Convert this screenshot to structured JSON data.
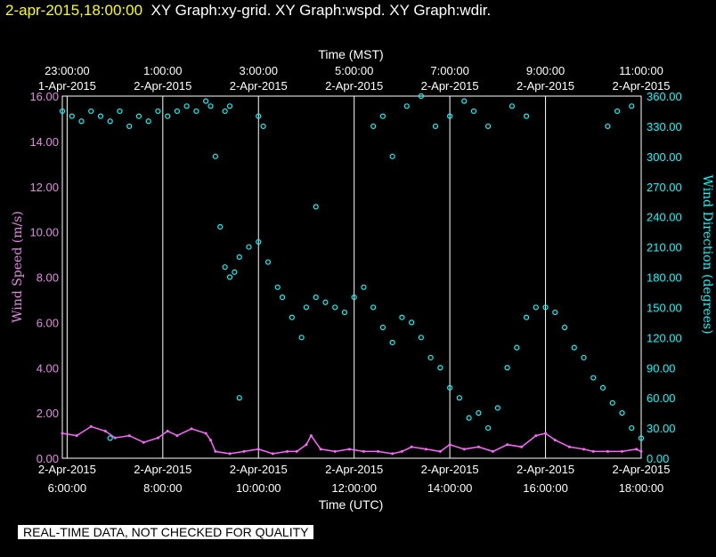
{
  "header": {
    "timestamp": "2-apr-2015,18:00:00",
    "graphs": "XY Graph:xy-grid.  XY Graph:wspd.  XY Graph:wdir."
  },
  "footer": {
    "quality_notice": "REAL-TIME DATA, NOT CHECKED FOR QUALITY"
  },
  "colors": {
    "background": "#000000",
    "axis": "#ffffff",
    "grid": "#ffffff",
    "wind_speed": "#ff66ff",
    "wind_speed_axis": "#e58ae5",
    "wind_direction": "#00ffff",
    "header_timestamp": "#ffff00"
  },
  "chart_data": {
    "type": "scatter",
    "top_axis": {
      "title": "Time (MST)",
      "ticks": [
        {
          "time": "23:00:00",
          "date": "1-Apr-2015"
        },
        {
          "time": "1:00:00",
          "date": "2-Apr-2015"
        },
        {
          "time": "3:00:00",
          "date": "2-Apr-2015"
        },
        {
          "time": "5:00:00",
          "date": "2-Apr-2015"
        },
        {
          "time": "7:00:00",
          "date": "2-Apr-2015"
        },
        {
          "time": "9:00:00",
          "date": "2-Apr-2015"
        },
        {
          "time": "11:00:00",
          "date": "2-Apr-2015"
        }
      ]
    },
    "bottom_axis": {
      "title": "Time (UTC)",
      "ticks": [
        {
          "date": "2-Apr-2015",
          "time": "6:00:00"
        },
        {
          "date": "2-Apr-2015",
          "time": "8:00:00"
        },
        {
          "date": "2-Apr-2015",
          "time": "10:00:00"
        },
        {
          "date": "2-Apr-2015",
          "time": "12:00:00"
        },
        {
          "date": "2-Apr-2015",
          "time": "14:00:00"
        },
        {
          "date": "2-Apr-2015",
          "time": "16:00:00"
        },
        {
          "date": "2-Apr-2015",
          "time": "18:00:00"
        }
      ],
      "xlim_hours_utc": [
        5.9,
        18.0
      ],
      "tick_hours_utc": [
        6,
        8,
        10,
        12,
        14,
        16,
        18
      ]
    },
    "left_axis": {
      "title": "Wind Speed (m/s)",
      "ylim": [
        0,
        16
      ],
      "ticks": [
        "0.00",
        "2.00",
        "4.00",
        "6.00",
        "8.00",
        "10.00",
        "12.00",
        "14.00",
        "16.00"
      ]
    },
    "right_axis": {
      "title": "Wind Direction (degrees)",
      "ylim": [
        0,
        360
      ],
      "ticks": [
        "0.00",
        "30.00",
        "60.00",
        "90.00",
        "120.00",
        "150.00",
        "180.00",
        "210.00",
        "240.00",
        "270.00",
        "300.00",
        "330.00",
        "360.00"
      ]
    },
    "grid": "vertical",
    "series": [
      {
        "name": "Wind Speed",
        "axis": "left",
        "style": "line",
        "x_hours_utc": [
          5.9,
          6.2,
          6.5,
          6.8,
          7.0,
          7.3,
          7.6,
          7.9,
          8.1,
          8.3,
          8.6,
          8.9,
          9.0,
          9.1,
          9.4,
          9.7,
          10.0,
          10.3,
          10.6,
          10.8,
          11.0,
          11.1,
          11.3,
          11.6,
          11.9,
          12.2,
          12.5,
          12.8,
          13.0,
          13.2,
          13.5,
          13.8,
          14.0,
          14.3,
          14.6,
          14.9,
          15.2,
          15.5,
          15.8,
          16.0,
          16.2,
          16.5,
          16.8,
          17.0,
          17.3,
          17.6,
          17.9,
          18.0
        ],
        "values": [
          1.1,
          1.0,
          1.4,
          1.2,
          0.9,
          1.0,
          0.7,
          0.9,
          1.2,
          1.0,
          1.3,
          1.1,
          0.8,
          0.3,
          0.2,
          0.3,
          0.4,
          0.2,
          0.3,
          0.3,
          0.6,
          1.0,
          0.4,
          0.3,
          0.4,
          0.3,
          0.3,
          0.2,
          0.3,
          0.5,
          0.4,
          0.3,
          0.6,
          0.4,
          0.5,
          0.3,
          0.6,
          0.5,
          1.0,
          1.1,
          0.8,
          0.5,
          0.4,
          0.3,
          0.3,
          0.3,
          0.4,
          0.3
        ]
      },
      {
        "name": "Wind Direction",
        "axis": "right",
        "style": "scatter",
        "x_hours_utc": [
          5.9,
          6.1,
          6.3,
          6.5,
          6.7,
          6.9,
          7.1,
          7.3,
          7.5,
          7.7,
          7.9,
          8.1,
          8.3,
          8.5,
          8.7,
          8.9,
          9.0,
          9.1,
          9.2,
          9.3,
          9.4,
          9.5,
          9.6,
          9.8,
          10.0,
          10.2,
          10.4,
          10.5,
          10.7,
          10.9,
          11.0,
          11.2,
          11.4,
          11.6,
          11.8,
          12.0,
          12.2,
          12.4,
          12.6,
          12.8,
          13.0,
          13.2,
          13.4,
          13.6,
          13.8,
          14.0,
          14.2,
          14.4,
          14.6,
          14.8,
          15.0,
          15.2,
          15.4,
          15.6,
          15.8,
          16.0,
          16.2,
          16.4,
          16.6,
          16.8,
          17.0,
          17.2,
          17.4,
          17.6,
          17.8,
          18.0
        ],
        "values": [
          345,
          340,
          335,
          345,
          340,
          335,
          345,
          330,
          340,
          335,
          345,
          340,
          345,
          350,
          345,
          355,
          350,
          300,
          230,
          190,
          180,
          185,
          200,
          210,
          215,
          195,
          170,
          160,
          140,
          120,
          150,
          160,
          155,
          150,
          145,
          160,
          170,
          150,
          130,
          115,
          140,
          135,
          120,
          100,
          90,
          70,
          60,
          40,
          45,
          30,
          50,
          90,
          110,
          140,
          150,
          150,
          145,
          130,
          110,
          100,
          80,
          70,
          55,
          45,
          30,
          20
        ],
        "outlier_points": [
          [
            6.9,
            20
          ],
          [
            9.3,
            345
          ],
          [
            9.4,
            350
          ],
          [
            9.6,
            60
          ],
          [
            10.0,
            340
          ],
          [
            10.1,
            330
          ],
          [
            11.2,
            250
          ],
          [
            12.4,
            330
          ],
          [
            12.6,
            340
          ],
          [
            12.8,
            300
          ],
          [
            13.1,
            350
          ],
          [
            13.4,
            360
          ],
          [
            13.7,
            330
          ],
          [
            14.0,
            340
          ],
          [
            14.3,
            355
          ],
          [
            14.5,
            345
          ],
          [
            14.8,
            330
          ],
          [
            15.3,
            350
          ],
          [
            15.6,
            340
          ],
          [
            17.3,
            330
          ],
          [
            17.5,
            345
          ],
          [
            17.8,
            350
          ]
        ]
      }
    ]
  }
}
